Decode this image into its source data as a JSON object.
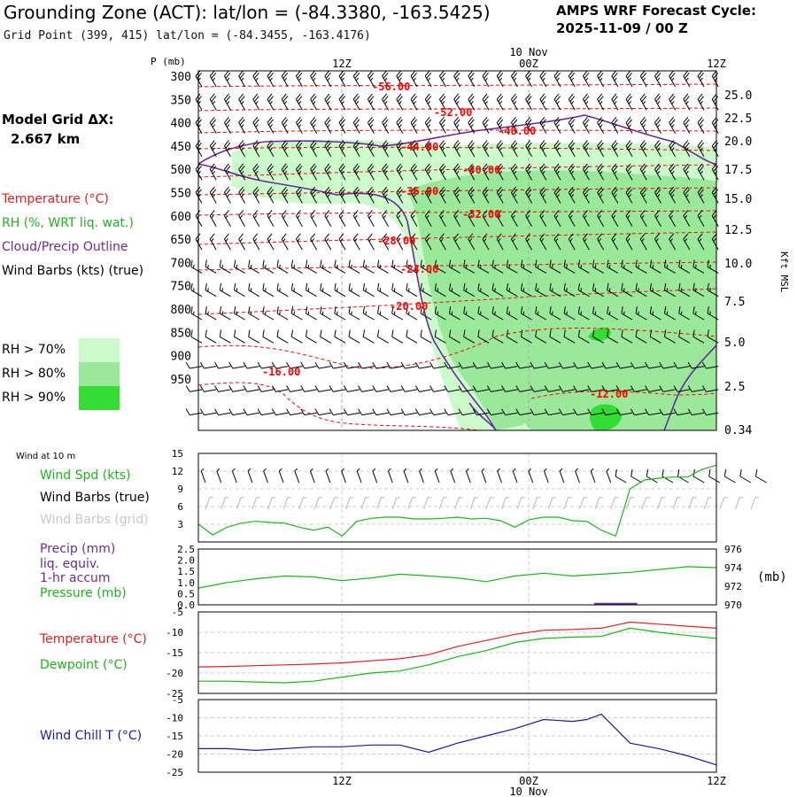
{
  "header": {
    "title": "Grounding Zone (ACT):  lat/lon = (-84.3380, -163.5425)",
    "grid_point": "Grid Point (399, 415) lat/lon = (-84.3455, -163.4176)",
    "cycle_line1": "AMPS WRF Forecast Cycle:",
    "cycle_line2": "2025-11-09 / 00  Z"
  },
  "legend": {
    "model_grid_label": "Model Grid ΔX:",
    "model_grid_value": "2.667 km",
    "temperature": "Temperature (°C)",
    "rh": "RH (%, WRT liq. wat.)",
    "cloud": "Cloud/Precip Outline",
    "wind_barbs": "Wind Barbs (kts) (true)",
    "rh70": "RH > 70%",
    "rh80": "RH > 80%",
    "rh90": "RH > 90%",
    "colors": {
      "temp": "#ff0000",
      "rh": "#00bb00",
      "cloud": "#6a2a9a",
      "rh70": "#cbfacb",
      "rh80": "#9ae99a",
      "rh90": "#33dd33"
    }
  },
  "time_axis": {
    "ticks": [
      "12Z",
      "00Z",
      "12Z"
    ],
    "date_label": "10 Nov"
  },
  "chart_data": [
    {
      "type": "heatmap",
      "title": "Time-height cross section",
      "ylabel": "P (mb)",
      "right_label": "Kft MSL",
      "p_ticks": [
        "300",
        "350",
        "400",
        "450",
        "500",
        "550",
        "600",
        "650",
        "700",
        "750",
        "800",
        "850",
        "900",
        "950"
      ],
      "kft_ticks": [
        "25.0",
        "22.5",
        "20.0",
        "17.5",
        "15.0",
        "12.5",
        "10.0",
        "7.5",
        "5.0",
        "2.5",
        "0.34"
      ],
      "temp_contour_labels": [
        "-56.00",
        "-52.00",
        "-48.00",
        "-44.00",
        "-40.00",
        "-36.00",
        "-32.00",
        "-28.00",
        "-24.00",
        "-20.00",
        "-16.00",
        "-12.00"
      ]
    },
    {
      "type": "line",
      "title": "Wind at 10 m",
      "series_labels": [
        "Wind Spd (kts)",
        "Wind Barbs (true)",
        "Wind Barbs (grid)"
      ],
      "yticks": [
        "15",
        "12",
        "9",
        "6",
        "3"
      ],
      "ylim": [
        0,
        15
      ],
      "x": [
        0,
        1,
        2,
        3,
        4,
        5,
        6,
        7,
        8,
        9,
        10,
        11,
        12,
        13,
        14,
        15,
        16,
        17,
        18,
        19,
        20,
        21,
        22,
        23,
        24,
        25,
        26,
        27,
        28,
        29,
        30,
        31,
        32,
        33,
        34,
        35,
        36
      ],
      "series": [
        {
          "name": "Wind Spd (kts)",
          "values": [
            3,
            1.2,
            2.5,
            3.2,
            3.5,
            3.3,
            3.2,
            2.5,
            2,
            2.5,
            1,
            3.5,
            4,
            4.2,
            4.2,
            3.9,
            3.9,
            4,
            4.2,
            3.9,
            4,
            3.6,
            2.5,
            3.8,
            4.2,
            4.2,
            3.6,
            3.5,
            2,
            1,
            9,
            10.5,
            10.8,
            11,
            11,
            12.3,
            13
          ]
        }
      ]
    },
    {
      "type": "line",
      "title": "Precip / Pressure",
      "series_labels": [
        "Precip (mm)",
        "liq. equiv.",
        "1-hr accum",
        "Pressure (mb)"
      ],
      "left_ticks": [
        "2.5",
        "2.0",
        "1.5",
        "1.0",
        "0.5",
        "0.0"
      ],
      "right_ticks": [
        "976",
        "974",
        "972",
        "970"
      ],
      "right_unit": "(mb)",
      "ylim_precip": [
        0,
        2.5
      ],
      "ylim_pressure": [
        970,
        976
      ],
      "x": [
        0,
        2,
        4,
        6,
        8,
        10,
        12,
        14,
        16,
        18,
        20,
        22,
        24,
        26,
        28,
        30,
        32,
        34,
        36
      ],
      "series": [
        {
          "name": "Pressure (mb)",
          "values": [
            971.8,
            972.4,
            972.8,
            973.1,
            973.0,
            972.6,
            972.9,
            973.3,
            973.1,
            972.9,
            972.5,
            973.1,
            973.4,
            973.1,
            973.3,
            973.5,
            973.8,
            974.1,
            974.0
          ]
        },
        {
          "name": "Precip (mm)",
          "values": [
            0,
            0,
            0,
            0,
            0,
            0,
            0,
            0,
            0,
            0,
            0,
            0,
            0,
            0,
            0.05,
            0.08,
            0.03,
            0,
            0
          ]
        }
      ]
    },
    {
      "type": "line",
      "title": "Temperature / Dewpoint",
      "series_labels": [
        "Temperature (°C)",
        "Dewpoint (°C)"
      ],
      "yticks": [
        "-5",
        "-10",
        "-15",
        "-20",
        "-25"
      ],
      "ylim": [
        -25,
        -5
      ],
      "x": [
        0,
        2,
        4,
        6,
        8,
        10,
        12,
        14,
        16,
        18,
        20,
        22,
        24,
        26,
        28,
        30,
        32,
        34,
        36
      ],
      "series": [
        {
          "name": "Temperature (°C)",
          "values": [
            -18.5,
            -18.4,
            -18.2,
            -18,
            -17.8,
            -17.5,
            -17,
            -16.5,
            -15.5,
            -13.5,
            -12,
            -10.5,
            -9.5,
            -9.3,
            -9,
            -7.5,
            -8,
            -8.5,
            -9
          ]
        },
        {
          "name": "Dewpoint (°C)",
          "values": [
            -22,
            -22,
            -22.2,
            -22.4,
            -22,
            -21,
            -20,
            -19.5,
            -18,
            -16,
            -14.5,
            -12.5,
            -11.5,
            -11.2,
            -11,
            -9,
            -10,
            -10.8,
            -11.5
          ]
        }
      ]
    },
    {
      "type": "line",
      "title": "Wind Chill",
      "series_labels": [
        "Wind Chill T (°C)"
      ],
      "yticks": [
        "-5",
        "-10",
        "-15",
        "-20",
        "-25"
      ],
      "ylim": [
        -25,
        -5
      ],
      "x": [
        0,
        2,
        4,
        6,
        8,
        10,
        12,
        14,
        16,
        18,
        20,
        22,
        24,
        26,
        27,
        28,
        30,
        32,
        34,
        36
      ],
      "series": [
        {
          "name": "Wind Chill T (°C)",
          "values": [
            -18.5,
            -18.5,
            -19,
            -18.5,
            -18,
            -18,
            -17.5,
            -17.5,
            -19.5,
            -17,
            -15,
            -13,
            -10.5,
            -11,
            -10.5,
            -9,
            -17,
            -18.5,
            -20.5,
            -23
          ]
        }
      ]
    }
  ]
}
